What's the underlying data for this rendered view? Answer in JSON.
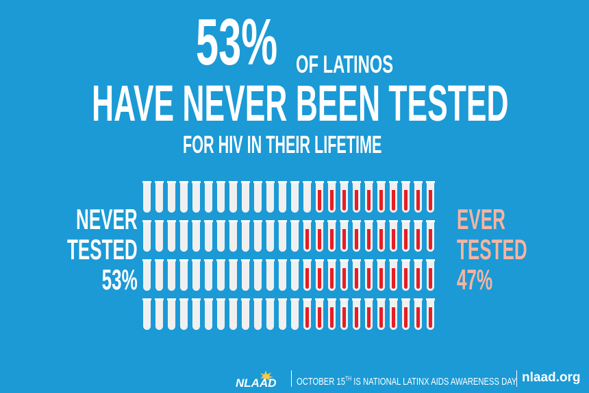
{
  "headline": {
    "big_percent": "53%",
    "of_latinos": "OF LATINOS",
    "main": "HAVE NEVER BEEN TESTED",
    "sub": "FOR HIV IN THEIR LIFETIME"
  },
  "never_tested": {
    "line1": "NEVER",
    "line2": "TESTED",
    "line3": "53%"
  },
  "ever_tested": {
    "line1": "EVER",
    "line2": "TESTED",
    "line3": "47%"
  },
  "tube_grid": {
    "rows": 4,
    "columns": 24,
    "red_per_row": [
      10,
      11,
      11,
      11
    ],
    "tube_color": "#f0f0f0",
    "blood_color": "#e51e25"
  },
  "colors": {
    "background": "#1b9ad6",
    "ever_text": "#f6b4a0"
  },
  "footer": {
    "logo_text": "NLAAD",
    "message_pre": "OCTOBER 15",
    "message_sup": "TH",
    "message_post": " IS NATIONAL LATINX AIDS AWARENESS DAY",
    "url": "nlaad.org"
  }
}
